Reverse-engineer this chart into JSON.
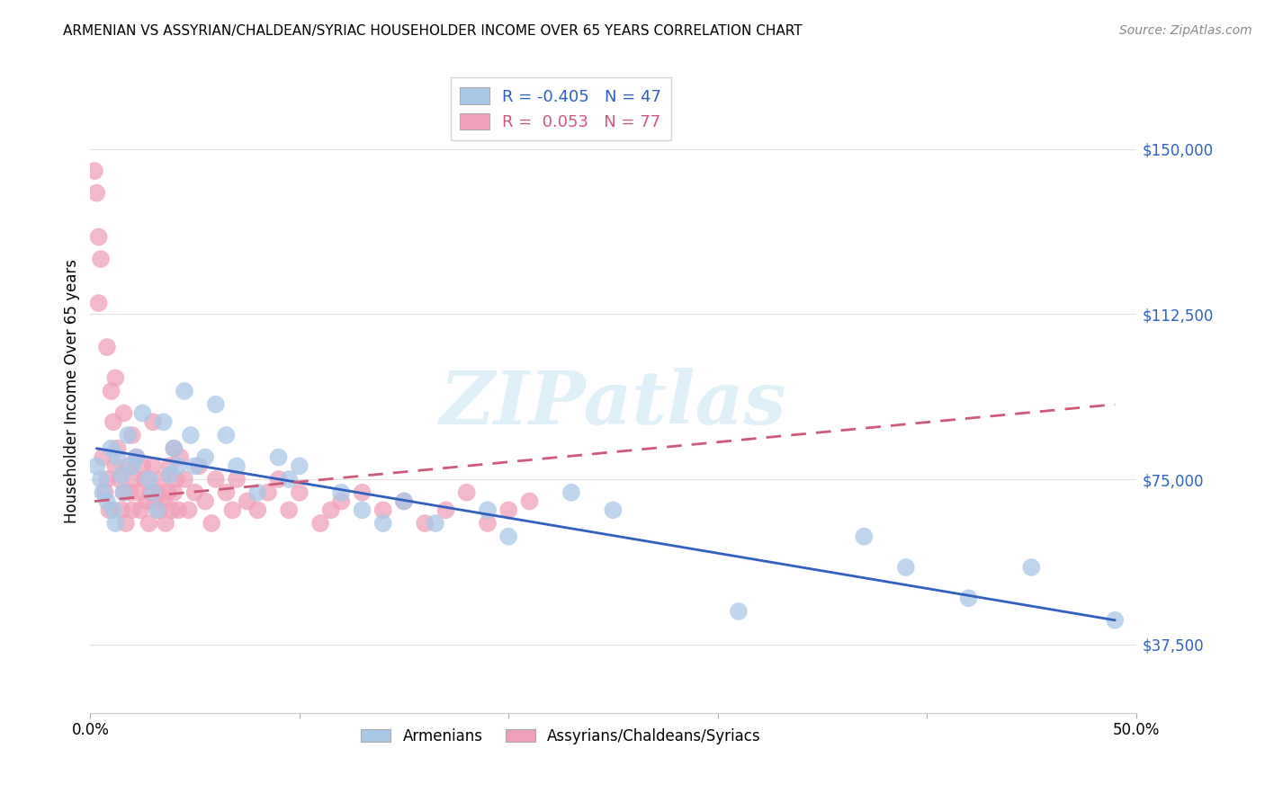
{
  "title": "ARMENIAN VS ASSYRIAN/CHALDEAN/SYRIAC HOUSEHOLDER INCOME OVER 65 YEARS CORRELATION CHART",
  "source": "Source: ZipAtlas.com",
  "ylabel": "Householder Income Over 65 years",
  "xlim": [
    0.0,
    0.5
  ],
  "ylim": [
    22000,
    168000
  ],
  "yticks": [
    37500,
    75000,
    112500,
    150000
  ],
  "ytick_labels": [
    "$37,500",
    "$75,000",
    "$112,500",
    "$150,000"
  ],
  "xticks": [
    0.0,
    0.1,
    0.2,
    0.3,
    0.4,
    0.5
  ],
  "legend_r_armenian": "-0.405",
  "legend_n_armenian": "47",
  "legend_r_assyrian": "0.053",
  "legend_n_assyrian": "77",
  "color_armenian": "#a8c8e8",
  "color_assyrian": "#f0a0b8",
  "color_trendline_armenian": "#3060c0",
  "color_trendline_assyrian": "#d05878",
  "watermark": "ZIPatlas",
  "background_color": "#ffffff",
  "grid_color": "#e0e0e0",
  "armenians_x": [
    0.003,
    0.005,
    0.006,
    0.008,
    0.01,
    0.011,
    0.012,
    0.013,
    0.015,
    0.016,
    0.018,
    0.02,
    0.022,
    0.025,
    0.028,
    0.03,
    0.032,
    0.035,
    0.038,
    0.04,
    0.042,
    0.045,
    0.048,
    0.05,
    0.055,
    0.06,
    0.065,
    0.07,
    0.08,
    0.09,
    0.095,
    0.1,
    0.12,
    0.13,
    0.14,
    0.15,
    0.165,
    0.19,
    0.2,
    0.23,
    0.25,
    0.31,
    0.37,
    0.39,
    0.42,
    0.45,
    0.49
  ],
  "armenians_y": [
    78000,
    75000,
    72000,
    70000,
    82000,
    68000,
    65000,
    80000,
    76000,
    72000,
    85000,
    78000,
    80000,
    90000,
    75000,
    72000,
    68000,
    88000,
    76000,
    82000,
    78000,
    95000,
    85000,
    78000,
    80000,
    92000,
    85000,
    78000,
    72000,
    80000,
    75000,
    78000,
    72000,
    68000,
    65000,
    70000,
    65000,
    68000,
    62000,
    72000,
    68000,
    45000,
    62000,
    55000,
    48000,
    55000,
    43000
  ],
  "assyrians_x": [
    0.002,
    0.003,
    0.004,
    0.005,
    0.006,
    0.007,
    0.008,
    0.009,
    0.01,
    0.011,
    0.012,
    0.013,
    0.014,
    0.015,
    0.016,
    0.017,
    0.018,
    0.019,
    0.02,
    0.021,
    0.022,
    0.023,
    0.024,
    0.025,
    0.026,
    0.027,
    0.028,
    0.029,
    0.03,
    0.031,
    0.032,
    0.033,
    0.034,
    0.035,
    0.036,
    0.037,
    0.038,
    0.039,
    0.04,
    0.041,
    0.042,
    0.043,
    0.045,
    0.047,
    0.05,
    0.052,
    0.055,
    0.058,
    0.06,
    0.065,
    0.068,
    0.07,
    0.075,
    0.08,
    0.085,
    0.09,
    0.095,
    0.1,
    0.11,
    0.115,
    0.12,
    0.13,
    0.14,
    0.15,
    0.16,
    0.17,
    0.18,
    0.19,
    0.2,
    0.21,
    0.004,
    0.008,
    0.012,
    0.016,
    0.02,
    0.03,
    0.04
  ],
  "assyrians_y": [
    145000,
    140000,
    130000,
    125000,
    80000,
    72000,
    75000,
    68000,
    95000,
    88000,
    78000,
    82000,
    75000,
    68000,
    72000,
    65000,
    78000,
    72000,
    68000,
    75000,
    80000,
    72000,
    68000,
    78000,
    75000,
    70000,
    65000,
    72000,
    78000,
    70000,
    72000,
    68000,
    75000,
    70000,
    65000,
    72000,
    78000,
    68000,
    72000,
    75000,
    68000,
    80000,
    75000,
    68000,
    72000,
    78000,
    70000,
    65000,
    75000,
    72000,
    68000,
    75000,
    70000,
    68000,
    72000,
    75000,
    68000,
    72000,
    65000,
    68000,
    70000,
    72000,
    68000,
    70000,
    65000,
    68000,
    72000,
    65000,
    68000,
    70000,
    115000,
    105000,
    98000,
    90000,
    85000,
    88000,
    82000
  ],
  "arm_trendline_x": [
    0.003,
    0.49
  ],
  "arm_trendline_y": [
    82000,
    43000
  ],
  "ass_trendline_x": [
    0.002,
    0.49
  ],
  "ass_trendline_y": [
    70000,
    92000
  ]
}
